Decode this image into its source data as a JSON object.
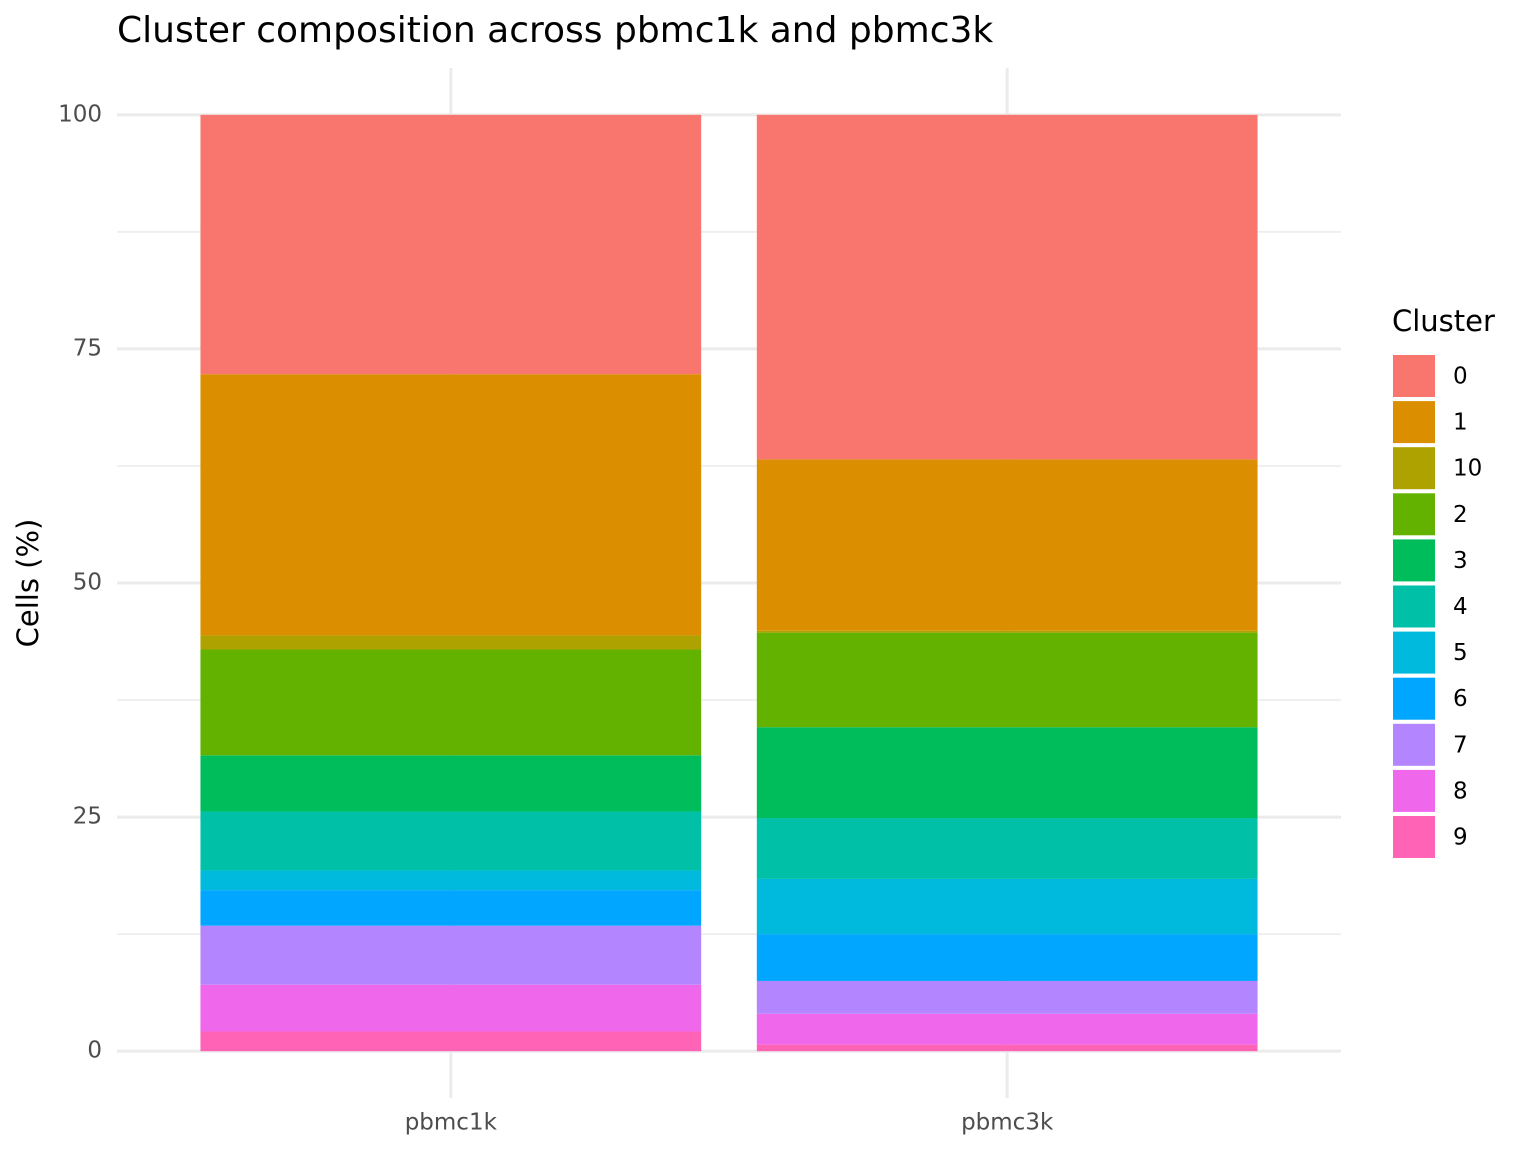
{
  "chart_data": {
    "type": "stacked-bar",
    "title": "Cluster composition across pbmc1k and pbmc3k",
    "y_label": "Cells (%)",
    "legend_title": "Cluster",
    "legend_position": "right",
    "categories": [
      "pbmc1k",
      "pbmc3k"
    ],
    "series": [
      {
        "name": "0",
        "color": "#F8766D",
        "values": [
          27.7,
          36.8
        ]
      },
      {
        "name": "1",
        "color": "#DB8E00",
        "values": [
          27.9,
          18.3
        ]
      },
      {
        "name": "10",
        "color": "#AEA200",
        "values": [
          1.5,
          0.2
        ]
      },
      {
        "name": "2",
        "color": "#64B200",
        "values": [
          11.3,
          10.1
        ]
      },
      {
        "name": "3",
        "color": "#00BD5C",
        "values": [
          6.0,
          9.7
        ]
      },
      {
        "name": "4",
        "color": "#00C1A7",
        "values": [
          6.3,
          6.5
        ]
      },
      {
        "name": "5",
        "color": "#00BADE",
        "values": [
          2.1,
          5.9
        ]
      },
      {
        "name": "6",
        "color": "#00A6FF",
        "values": [
          3.8,
          5.0
        ]
      },
      {
        "name": "7",
        "color": "#B385FF",
        "values": [
          6.3,
          3.5
        ]
      },
      {
        "name": "8",
        "color": "#EF67EB",
        "values": [
          5.0,
          3.3
        ]
      },
      {
        "name": "9",
        "color": "#FF63B6",
        "values": [
          2.1,
          0.7
        ]
      }
    ],
    "ylim": [
      -5,
      105
    ],
    "yticks": [
      0,
      25,
      50,
      75,
      100
    ],
    "y_minor_ticks": [
      12.5,
      37.5,
      62.5,
      87.5
    ],
    "grid": true
  }
}
